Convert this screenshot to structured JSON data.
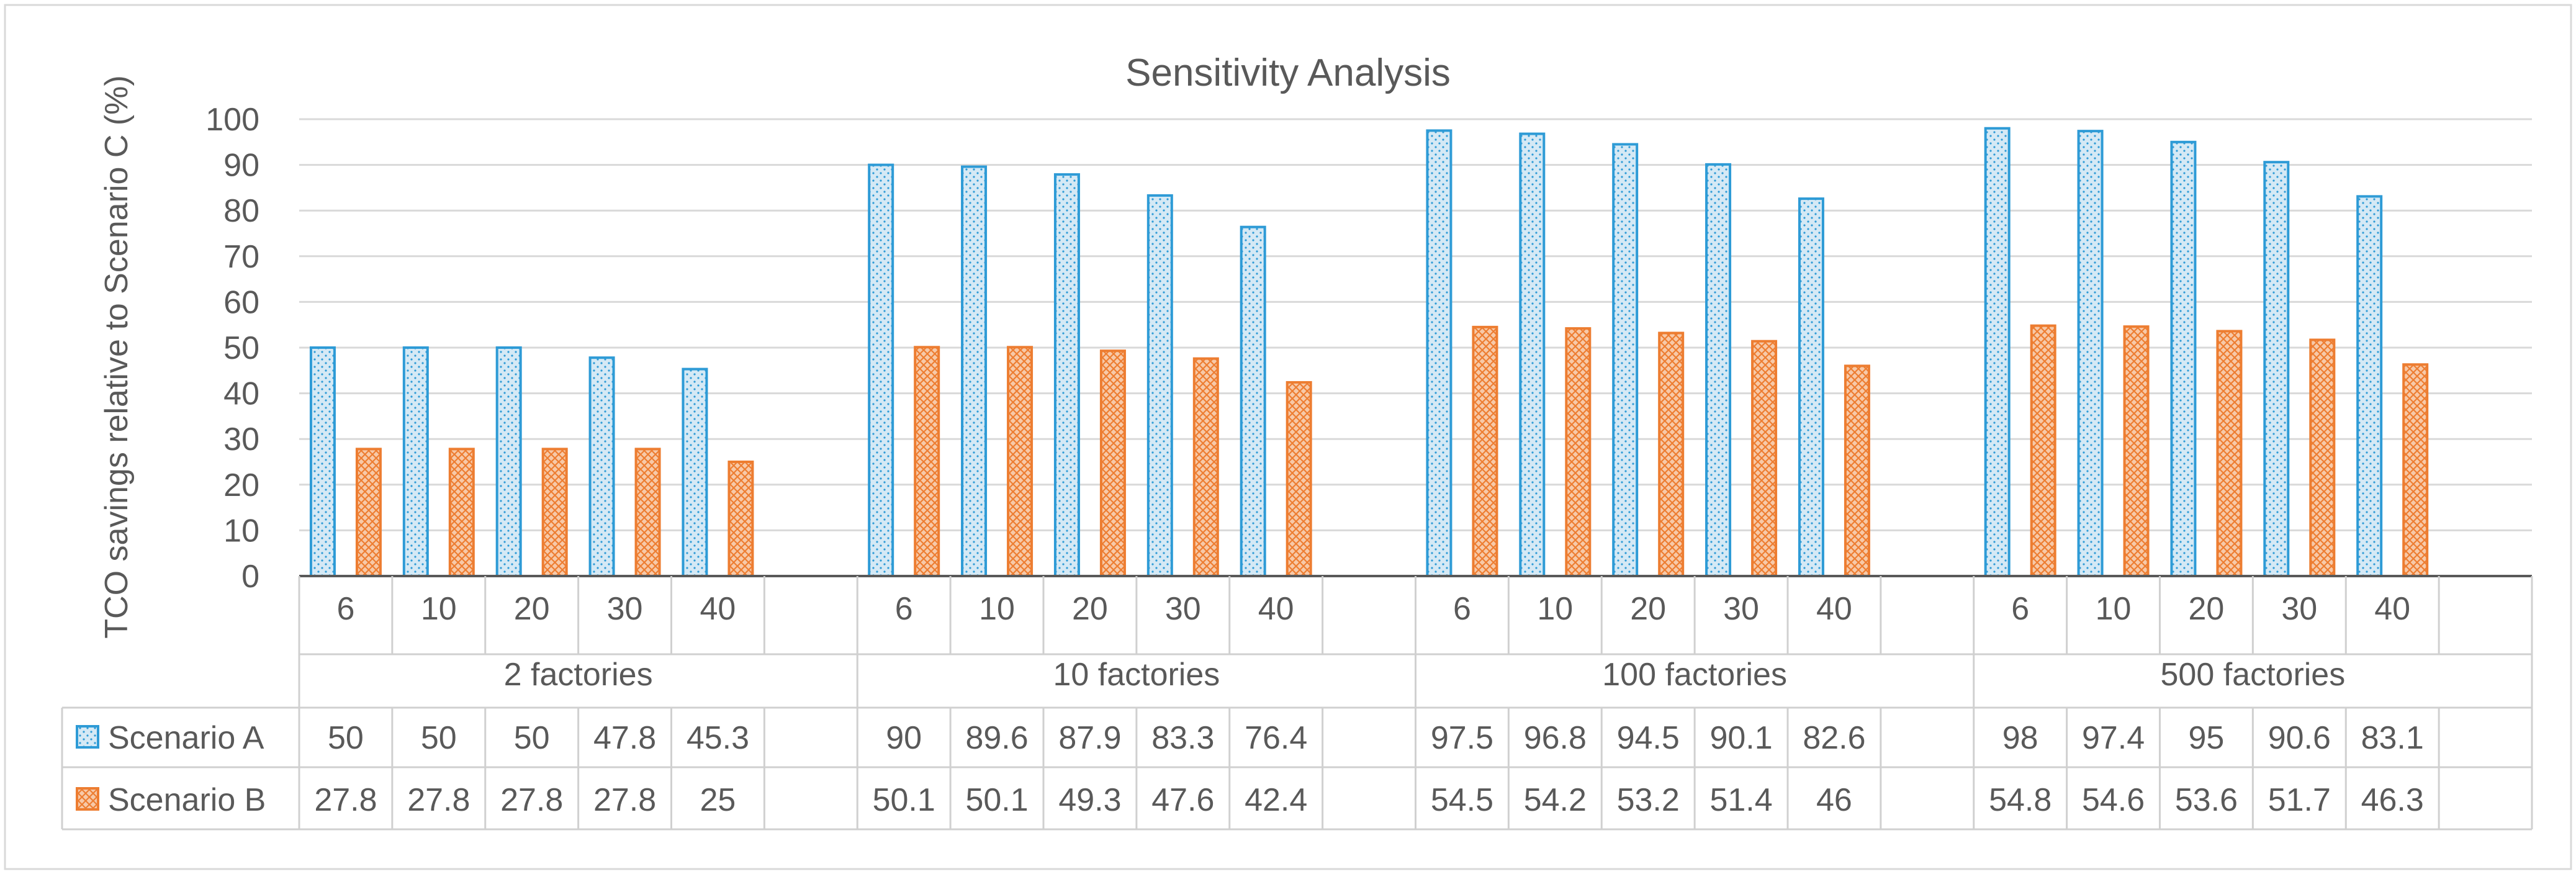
{
  "chart_data": {
    "type": "bar",
    "title": "Sensitivity Analysis",
    "ylabel": "TCO savings relative to Scenario C (%)",
    "xlabel": "",
    "ylim": [
      0,
      100
    ],
    "yticks": [
      0,
      10,
      20,
      30,
      40,
      50,
      60,
      70,
      80,
      90,
      100
    ],
    "grid": true,
    "legend": "data-table-left",
    "groups": [
      {
        "label": "2 factories",
        "categories": [
          "6",
          "10",
          "20",
          "30",
          "40"
        ]
      },
      {
        "label": "10 factories",
        "categories": [
          "6",
          "10",
          "20",
          "30",
          "40"
        ]
      },
      {
        "label": "100 factories",
        "categories": [
          "6",
          "10",
          "20",
          "30",
          "40"
        ]
      },
      {
        "label": "500 factories",
        "categories": [
          "6",
          "10",
          "20",
          "30",
          "40"
        ]
      }
    ],
    "series": [
      {
        "name": "Scenario A",
        "color": "#2E9BD6",
        "fill": "#D5E9F5",
        "values": [
          [
            50,
            50,
            50,
            47.8,
            45.3
          ],
          [
            90,
            89.6,
            87.9,
            83.3,
            76.4
          ],
          [
            97.5,
            96.8,
            94.5,
            90.1,
            82.6
          ],
          [
            98,
            97.4,
            95,
            90.6,
            83.1
          ]
        ]
      },
      {
        "name": "Scenario B",
        "color": "#ED7D31",
        "fill": "#F7C9A8",
        "values": [
          [
            27.8,
            27.8,
            27.8,
            27.8,
            25
          ],
          [
            50.1,
            50.1,
            49.3,
            47.6,
            42.4
          ],
          [
            54.5,
            54.2,
            53.2,
            51.4,
            46
          ],
          [
            54.8,
            54.6,
            53.6,
            51.7,
            46.3
          ]
        ]
      }
    ]
  }
}
